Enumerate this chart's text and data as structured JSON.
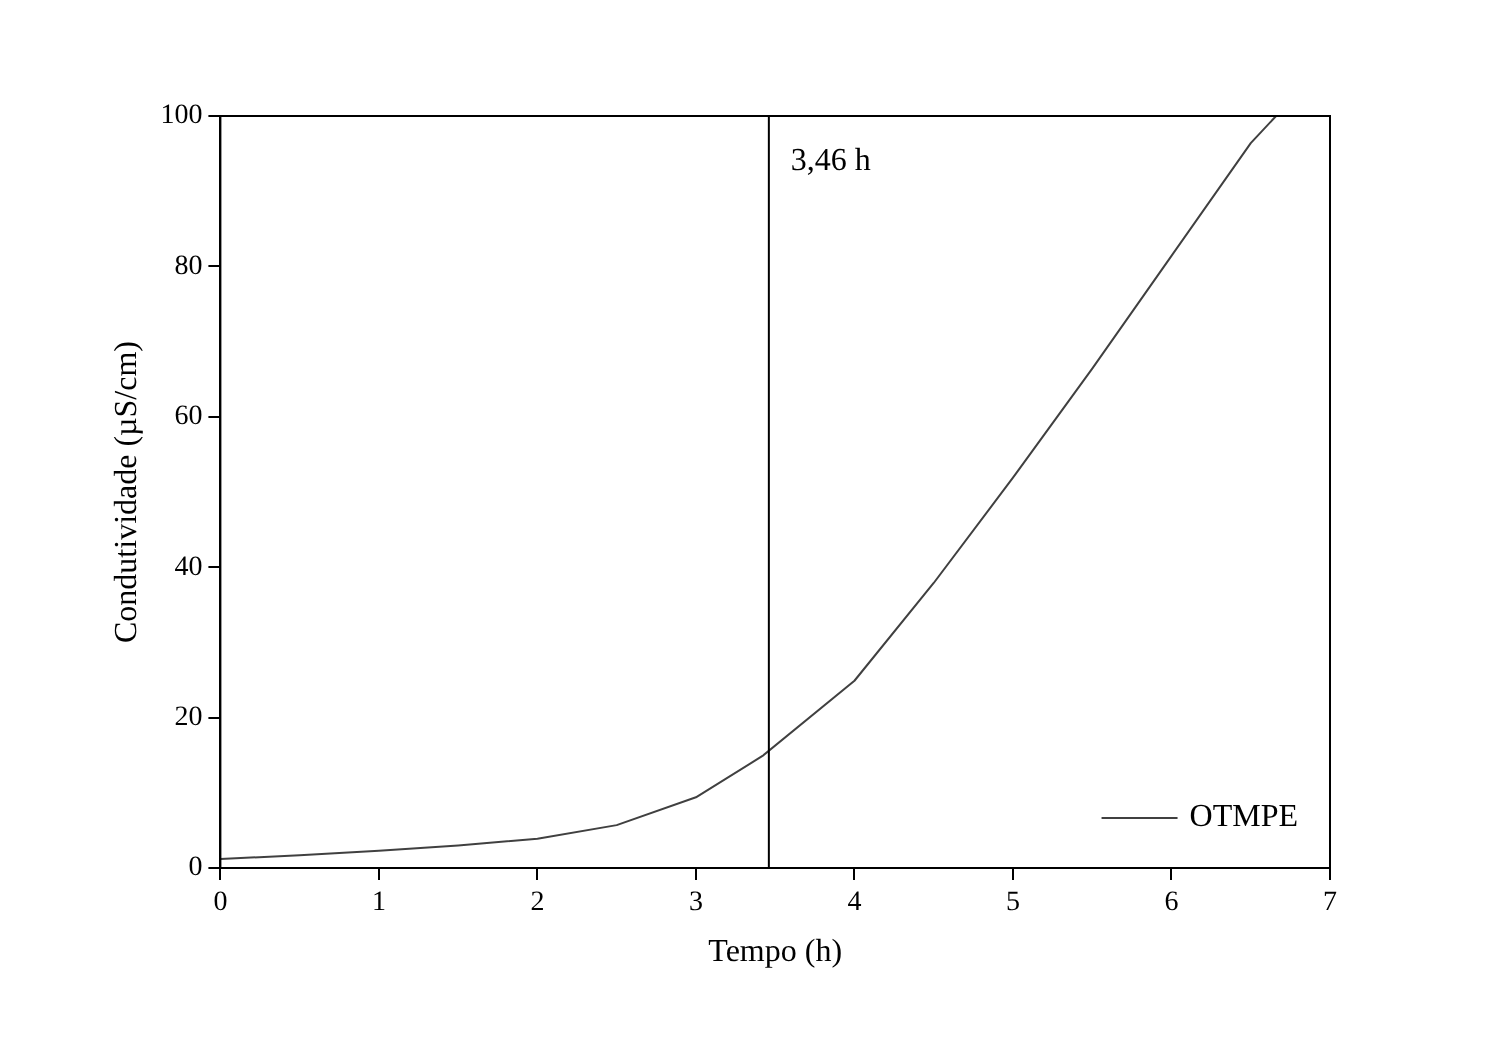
{
  "chart_data": {
    "type": "line",
    "xlabel": "Tempo (h)",
    "ylabel": "Condutividade (µS/cm)",
    "x": [
      0,
      0.5,
      1,
      1.5,
      2,
      2.5,
      3,
      3.42,
      4,
      4.5,
      5,
      5.5,
      6,
      6.5,
      6.66
    ],
    "series": [
      {
        "name": "OTMPE",
        "color": "#404040",
        "values": [
          1.2,
          1.7,
          2.3,
          3,
          3.9,
          5.7,
          9.4,
          14.9,
          24.9,
          37.9,
          51.9,
          66.4,
          81.4,
          96.4,
          100
        ]
      }
    ],
    "xlim": [
      0,
      7
    ],
    "xticks": [
      0,
      1,
      2,
      3,
      4,
      5,
      6,
      7
    ],
    "ylim": [
      0,
      100
    ],
    "yticks": [
      0,
      20,
      40,
      60,
      80,
      100
    ],
    "ref_lines": [
      {
        "axis": "x",
        "value": 3.46,
        "label": "3,46 h",
        "color": "#000000"
      }
    ],
    "grid": false,
    "legend": "bottom right",
    "marker": "none",
    "line_style": "solid"
  }
}
